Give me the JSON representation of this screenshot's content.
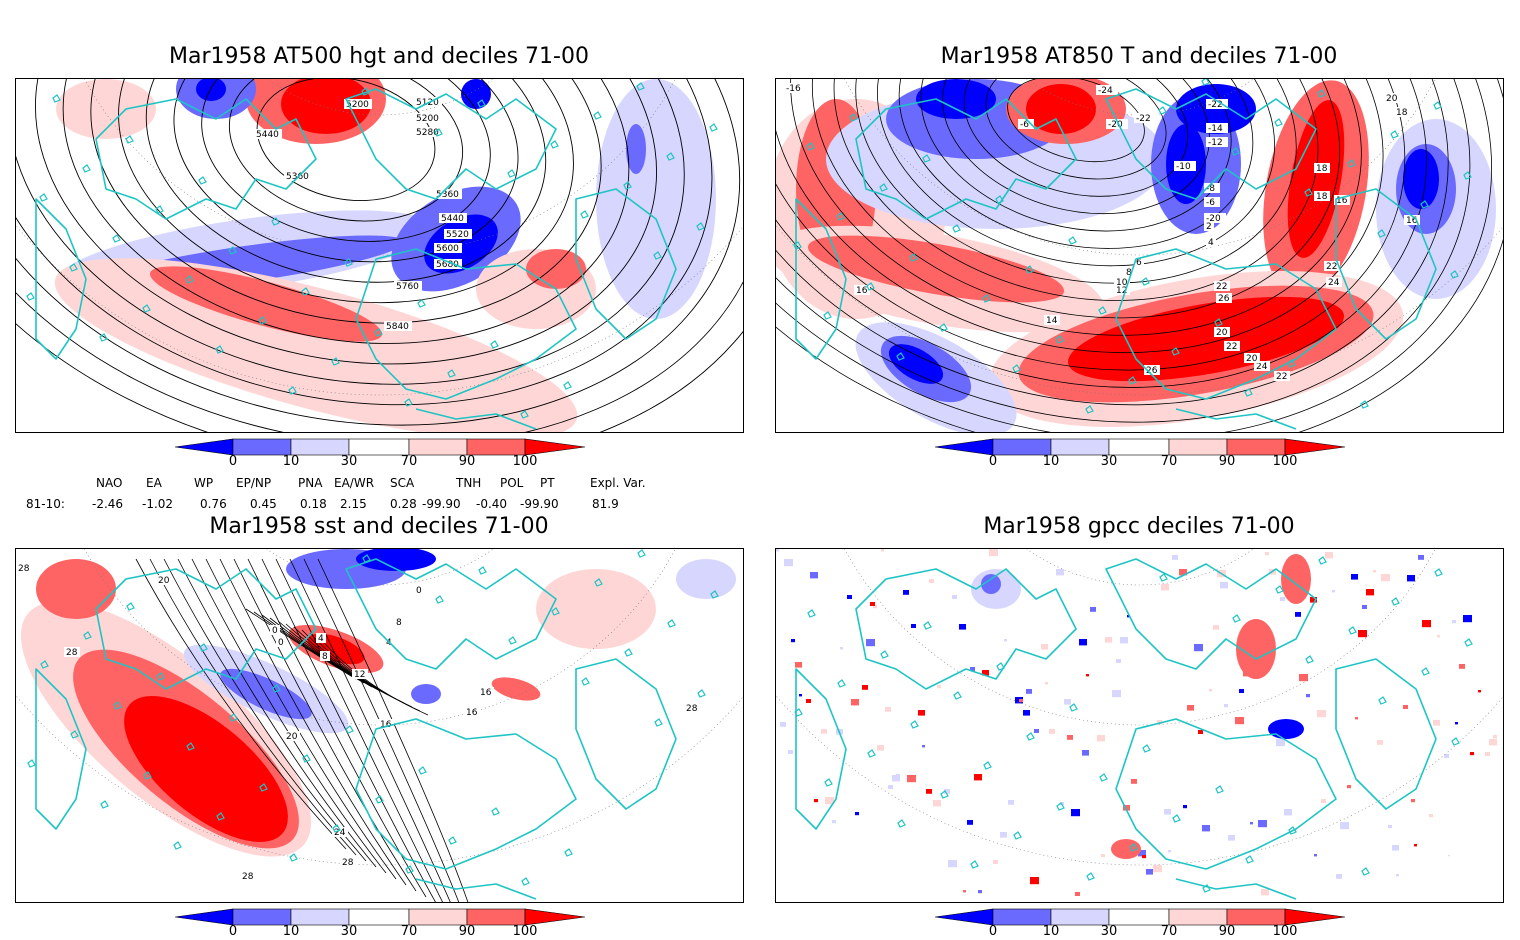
{
  "panels": [
    {
      "id": "p1",
      "title": "Mar1958 AT500 hgt and deciles 71-00",
      "contour_labels": [
        "5120",
        "5200",
        "5200",
        "5280",
        "5440",
        "5360",
        "5360",
        "5440",
        "5520",
        "5600",
        "5680",
        "5760",
        "5840"
      ]
    },
    {
      "id": "p2",
      "title": "Mar1958 AT850 T and deciles 71-00",
      "contour_labels": [
        "-16",
        "-24",
        "-6",
        "-20",
        "-22",
        "-22",
        "-14",
        "-12",
        "-10",
        "-8",
        "-6",
        "-20",
        "2",
        "4",
        "6",
        "8",
        "10",
        "12",
        "14",
        "16",
        "18",
        "18",
        "16",
        "16",
        "18",
        "20",
        "22",
        "24",
        "26",
        "22",
        "20",
        "26",
        "24",
        "22",
        "20",
        "22"
      ]
    },
    {
      "id": "p3",
      "title": "Mar1958 sst and deciles 71-00",
      "contour_labels": [
        "28",
        "20",
        "28",
        "0",
        "0",
        "4",
        "8",
        "12",
        "16",
        "20",
        "24",
        "28",
        "28",
        "16",
        "16",
        "28",
        "4",
        "8",
        "0"
      ]
    },
    {
      "id": "p4",
      "title": "Mar1958 gpcc deciles 71-00",
      "contour_labels": []
    }
  ],
  "colorbar": {
    "ticks": [
      "0",
      "10",
      "30",
      "70",
      "90",
      "100"
    ],
    "colors": {
      "dark_blue": "#0000ff",
      "mid_blue": "#6a6aff",
      "light_blue": "#d6d6ff",
      "white": "#ffffff",
      "light_red": "#ffd6d6",
      "mid_red": "#ff6464",
      "dark_red": "#ff0000"
    }
  },
  "indices": {
    "names": [
      "NAO",
      "EA",
      "WP",
      "EP/NP",
      "PNA",
      "EA/WR",
      "SCA",
      "TNH",
      "POL",
      "PT",
      "Expl. Var."
    ],
    "row_label": "81-10:",
    "values": [
      "-2.46",
      "-1.02",
      "0.76",
      "0.45",
      "0.18",
      "2.15",
      "0.28",
      "-99.90",
      "-0.40",
      "-99.90",
      "81.9"
    ]
  },
  "coast_color": "#1ec4c4"
}
